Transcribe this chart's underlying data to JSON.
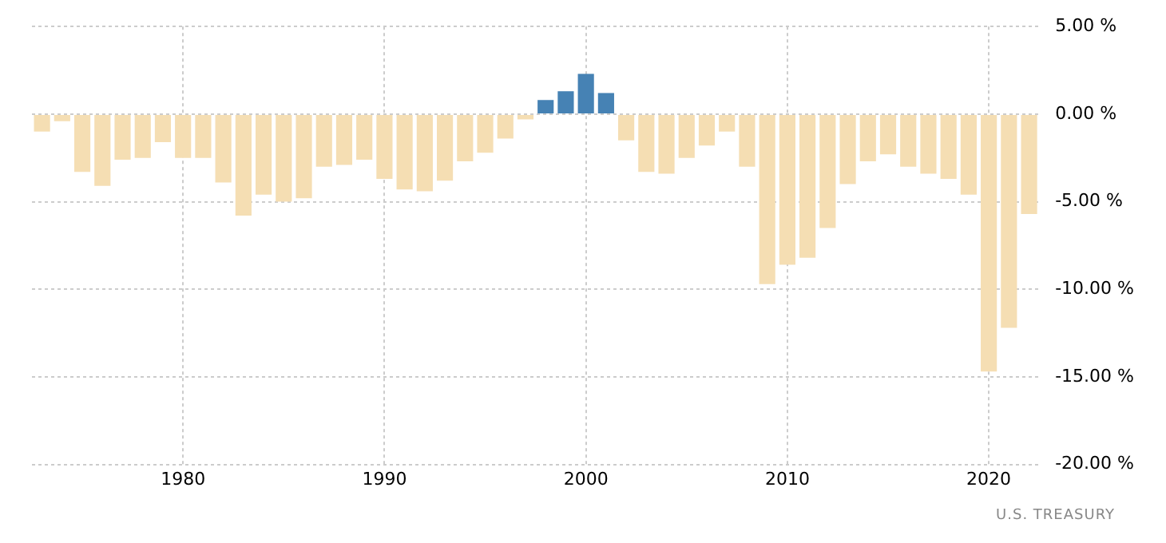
{
  "chart_data": {
    "type": "bar",
    "categories": [
      null,
      null,
      null,
      null,
      null,
      null,
      null,
      "1980",
      null,
      null,
      null,
      null,
      null,
      null,
      null,
      null,
      null,
      "1990",
      null,
      null,
      null,
      null,
      null,
      null,
      null,
      null,
      null,
      "2000",
      null,
      null,
      null,
      null,
      null,
      null,
      null,
      null,
      null,
      "2010",
      null,
      null,
      null,
      null,
      null,
      null,
      null,
      null,
      null,
      "2020",
      null,
      null
    ],
    "values": [
      -1.0,
      -0.4,
      -3.3,
      -4.1,
      -2.6,
      -2.5,
      -1.6,
      -2.5,
      -2.5,
      -3.9,
      -5.8,
      -4.6,
      -5.0,
      -4.8,
      -3.0,
      -2.9,
      -2.6,
      -3.7,
      -4.3,
      -4.4,
      -3.8,
      -2.7,
      -2.2,
      -1.4,
      -0.3,
      0.8,
      1.3,
      2.3,
      1.2,
      -1.5,
      -3.3,
      -3.4,
      -2.5,
      -1.8,
      -1.0,
      -3.0,
      -9.7,
      -8.6,
      -8.2,
      -6.5,
      -4.0,
      -2.7,
      -2.3,
      -3.0,
      -3.4,
      -3.7,
      -4.6,
      -14.7,
      -12.2,
      -5.7
    ],
    "colors": [
      "#f5deb3",
      "#f5deb3",
      "#f5deb3",
      "#f5deb3",
      "#f5deb3",
      "#f5deb3",
      "#f5deb3",
      "#f5deb3",
      "#f5deb3",
      "#f5deb3",
      "#f5deb3",
      "#f5deb3",
      "#f5deb3",
      "#f5deb3",
      "#f5deb3",
      "#f5deb3",
      "#f5deb3",
      "#f5deb3",
      "#f5deb3",
      "#f5deb3",
      "#f5deb3",
      "#f5deb3",
      "#f5deb3",
      "#f5deb3",
      "#f5deb3",
      "#4682b4",
      "#4682b4",
      "#4682b4",
      "#4682b4",
      "#f5deb3",
      "#f5deb3",
      "#f5deb3",
      "#f5deb3",
      "#f5deb3",
      "#f5deb3",
      "#f5deb3",
      "#f5deb3",
      "#f5deb3",
      "#f5deb3",
      "#f5deb3",
      "#f5deb3",
      "#f5deb3",
      "#f5deb3",
      "#f5deb3",
      "#f5deb3",
      "#f5deb3",
      "#f5deb3",
      "#f5deb3",
      "#f5deb3",
      "#f5deb3"
    ],
    "ylim": [
      -20,
      5
    ],
    "yticks": [
      {
        "value": 5,
        "label": "5.00 %"
      },
      {
        "value": 0,
        "label": "0.00 %"
      },
      {
        "value": -5,
        "label": "-5.00 %"
      },
      {
        "value": -10,
        "label": "-10.00 %"
      },
      {
        "value": -15,
        "label": "-15.00 %"
      },
      {
        "value": -20,
        "label": "-20.00 %"
      }
    ],
    "grid": true,
    "legend": false,
    "annotations": [
      "U.S. TREASURY"
    ]
  }
}
